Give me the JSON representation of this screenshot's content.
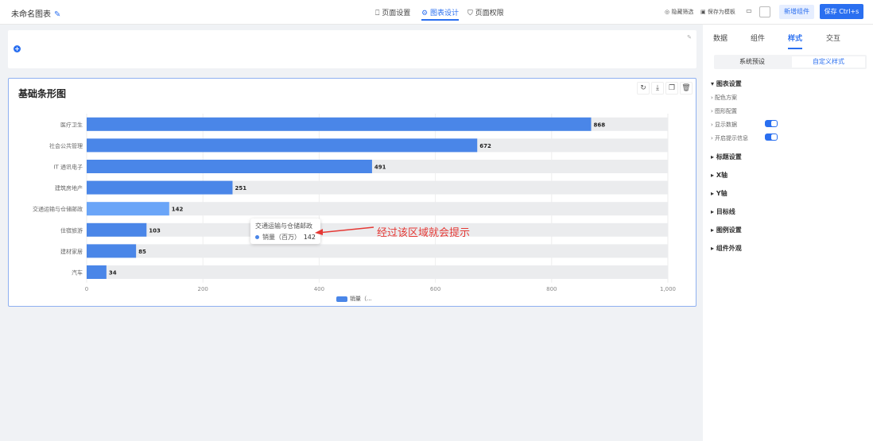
{
  "header": {
    "title": "未命名图表",
    "tabs": [
      "页面设置",
      "图表设计",
      "页面权限"
    ],
    "active_tab": 1,
    "hide_filter": "隐藏筛选",
    "save_template": "保存为模板",
    "add_component": "新增组件",
    "save": "保存 Ctrl+s"
  },
  "chart_card": {
    "title": "基础条形图",
    "tools": [
      "refresh-icon",
      "download-icon",
      "copy-icon",
      "delete-icon"
    ]
  },
  "chart_data": {
    "type": "bar",
    "orientation": "horizontal",
    "title": "基础条形图",
    "categories": [
      "医疗卫生",
      "社会公共管理",
      "IT 通讯电子",
      "建筑房地产",
      "交通运输与仓储邮政",
      "住宿旅游",
      "建材家居",
      "汽车"
    ],
    "series": [
      {
        "name": "销量（百万）",
        "values": [
          868,
          672,
          491,
          251,
          142,
          103,
          85,
          34
        ]
      }
    ],
    "xlim": [
      0,
      1000
    ],
    "xticks": [
      "0",
      "200",
      "400",
      "600",
      "800",
      "1,000"
    ],
    "legend": "bottom-left",
    "legend_label": "销量（...",
    "grid": true,
    "bar_color": "#4a86e8",
    "highlight_color": "#6aa5f8",
    "highlight_index": 4,
    "background_bar_color": "#ebecee"
  },
  "tooltip": {
    "title": "交通运输与仓储邮政",
    "series": "销量（百万）",
    "value": "142"
  },
  "annotation": "经过该区域就会提示",
  "panel": {
    "tabs": [
      "数据",
      "组件",
      "样式",
      "交互"
    ],
    "active_tab": 2,
    "presets": [
      "系统预设",
      "自定义样式"
    ],
    "sections": [
      {
        "label": "图表设置",
        "expanded": true,
        "items": [
          {
            "label": "配色方案"
          },
          {
            "label": "图形配置"
          },
          {
            "label": "显示数据",
            "toggle": true
          },
          {
            "label": "开启提示信息",
            "toggle": true
          }
        ]
      },
      {
        "label": "标题设置"
      },
      {
        "label": "X轴"
      },
      {
        "label": "Y轴"
      },
      {
        "label": "目标线"
      },
      {
        "label": "图例设置"
      },
      {
        "label": "组件外观"
      }
    ]
  }
}
